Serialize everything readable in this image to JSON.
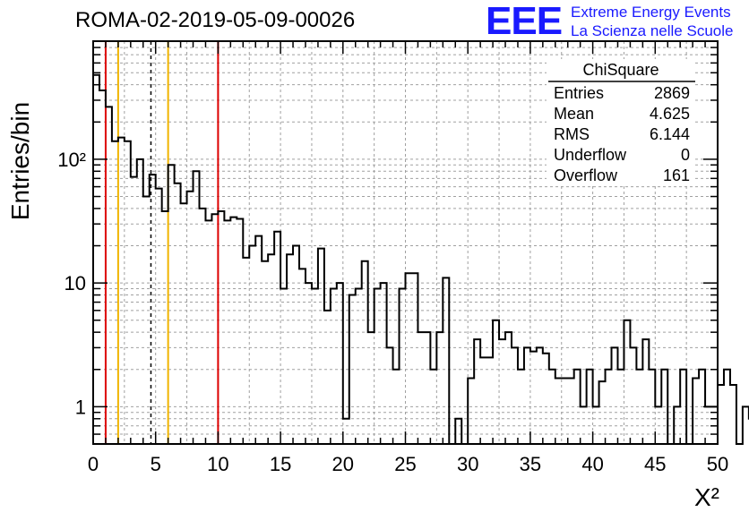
{
  "header": {
    "title": "ROMA-02-2019-05-09-00026",
    "logo_mark": "EEE",
    "logo_line1": "Extreme Energy Events",
    "logo_line2": "La Scienza nelle Scuole"
  },
  "stats_box": {
    "title": "ChiSquare",
    "rows": [
      {
        "label": "Entries",
        "value": "2869"
      },
      {
        "label": "Mean",
        "value": "4.625"
      },
      {
        "label": "RMS",
        "value": "6.144"
      },
      {
        "label": "Underflow",
        "value": "0"
      },
      {
        "label": "Overflow",
        "value": "161"
      }
    ]
  },
  "colors": {
    "histogram": "#000000",
    "red_lines": "#dd0000",
    "yellow_lines": "#f0b400",
    "mean_line": "#000000",
    "grid": "#a0a0a0"
  },
  "chart_data": {
    "type": "histogram",
    "title": "ROMA-02-2019-05-09-00026",
    "xlabel": "Χ²",
    "ylabel": "Entries/bin",
    "xlim": [
      0,
      50
    ],
    "ylim": [
      0.5,
      900
    ],
    "y_scale": "log",
    "grid": true,
    "bin_width": 0.5,
    "x_ticks": [
      0,
      5,
      10,
      15,
      20,
      25,
      30,
      35,
      40,
      45,
      50
    ],
    "y_ticks": [
      {
        "value": 1,
        "label": "1"
      },
      {
        "value": 10,
        "label": "10"
      },
      {
        "value": 100,
        "label": "10²"
      }
    ],
    "counts": [
      480,
      360,
      265,
      140,
      150,
      140,
      72,
      100,
      50,
      75,
      58,
      38,
      90,
      64,
      44,
      55,
      80,
      40,
      32,
      36,
      38,
      32,
      34,
      33,
      16,
      20,
      24,
      15,
      17,
      26,
      9,
      17,
      20,
      13,
      10,
      9,
      19,
      6,
      9,
      10,
      0.8,
      8,
      9,
      15,
      4,
      9,
      10,
      3,
      2,
      9,
      12,
      12,
      4,
      4,
      2,
      4,
      11,
      0.4,
      0.8,
      0.4,
      1.7,
      3.5,
      2.5,
      2.5,
      5,
      3.5,
      4,
      3,
      2,
      3,
      2.8,
      3,
      2.7,
      2,
      1.7,
      1.7,
      1.7,
      2,
      1,
      2,
      1,
      1.6,
      2,
      3,
      2,
      5,
      3,
      2,
      3.5,
      2,
      1,
      2,
      0.4,
      1,
      2,
      0.4,
      1.7,
      2,
      1,
      1,
      1.5,
      2,
      1.5,
      0.4,
      1,
      0.8,
      2,
      2,
      1,
      4,
      0.8,
      1,
      2,
      1,
      1,
      1,
      1.6,
      0.4,
      1,
      1,
      1,
      1,
      1,
      1,
      1,
      0.4,
      1,
      0.4,
      1.7,
      1,
      1,
      1,
      1.6,
      1,
      1,
      2,
      1.6,
      1,
      0.4,
      0.4,
      1.6,
      0.4,
      1,
      1,
      1,
      2,
      2,
      1,
      1,
      1,
      1,
      1,
      1,
      0.4,
      1,
      1,
      1,
      2,
      1,
      1,
      1,
      0.4,
      0.4,
      1,
      1,
      1,
      1,
      1,
      1,
      1,
      1,
      2,
      1,
      1,
      1,
      0.4,
      0.4,
      1,
      1,
      1,
      1,
      0.4,
      1,
      1,
      1,
      1,
      1,
      1,
      1,
      1,
      1,
      1,
      1,
      0.4,
      0.4,
      0.4,
      0.4,
      0.4,
      0.4,
      0.4
    ],
    "vertical_lines": [
      {
        "x": 1,
        "color": "red",
        "style": "solid"
      },
      {
        "x": 10,
        "color": "red",
        "style": "solid"
      },
      {
        "x": 2,
        "color": "yellow",
        "style": "solid"
      },
      {
        "x": 6,
        "color": "yellow",
        "style": "solid"
      },
      {
        "x": 4.625,
        "color": "black",
        "style": "dashed"
      }
    ]
  }
}
